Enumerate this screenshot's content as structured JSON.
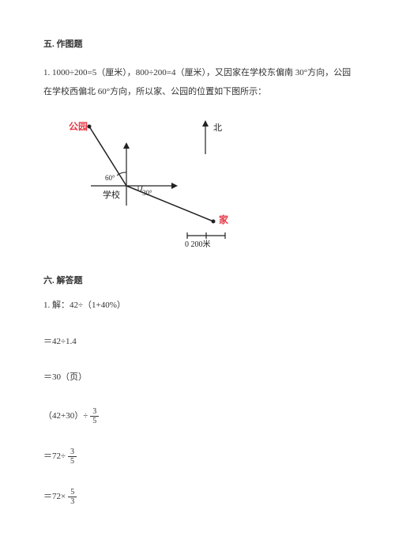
{
  "section5_title": "五. 作图题",
  "problem1_text": "1. 1000÷200=5（厘米），800÷200=4（厘米），又因家在学校东偏南 30°方向，公园在学校西偏北 60°方向，所以家、公园的位置如下图所示：",
  "diagram": {
    "label_park": "公园",
    "label_home": "家",
    "label_school": "学校",
    "label_north": "北",
    "label_scale": "0  200米",
    "angle1": "60°",
    "angle2": "30°",
    "color_park": "#e63946",
    "color_main": "#222222"
  },
  "section6_title": "六. 解答题",
  "answer_lines": [
    "1. 解：42÷（1+40%）",
    "＝42÷1.4",
    "＝30（页）"
  ],
  "frac_lines": [
    {
      "prefix": "（42+30）÷",
      "num": "3",
      "den": "5"
    },
    {
      "prefix": "＝72÷",
      "num": "3",
      "den": "5"
    },
    {
      "prefix": "＝72×",
      "num": "5",
      "den": "3"
    }
  ]
}
